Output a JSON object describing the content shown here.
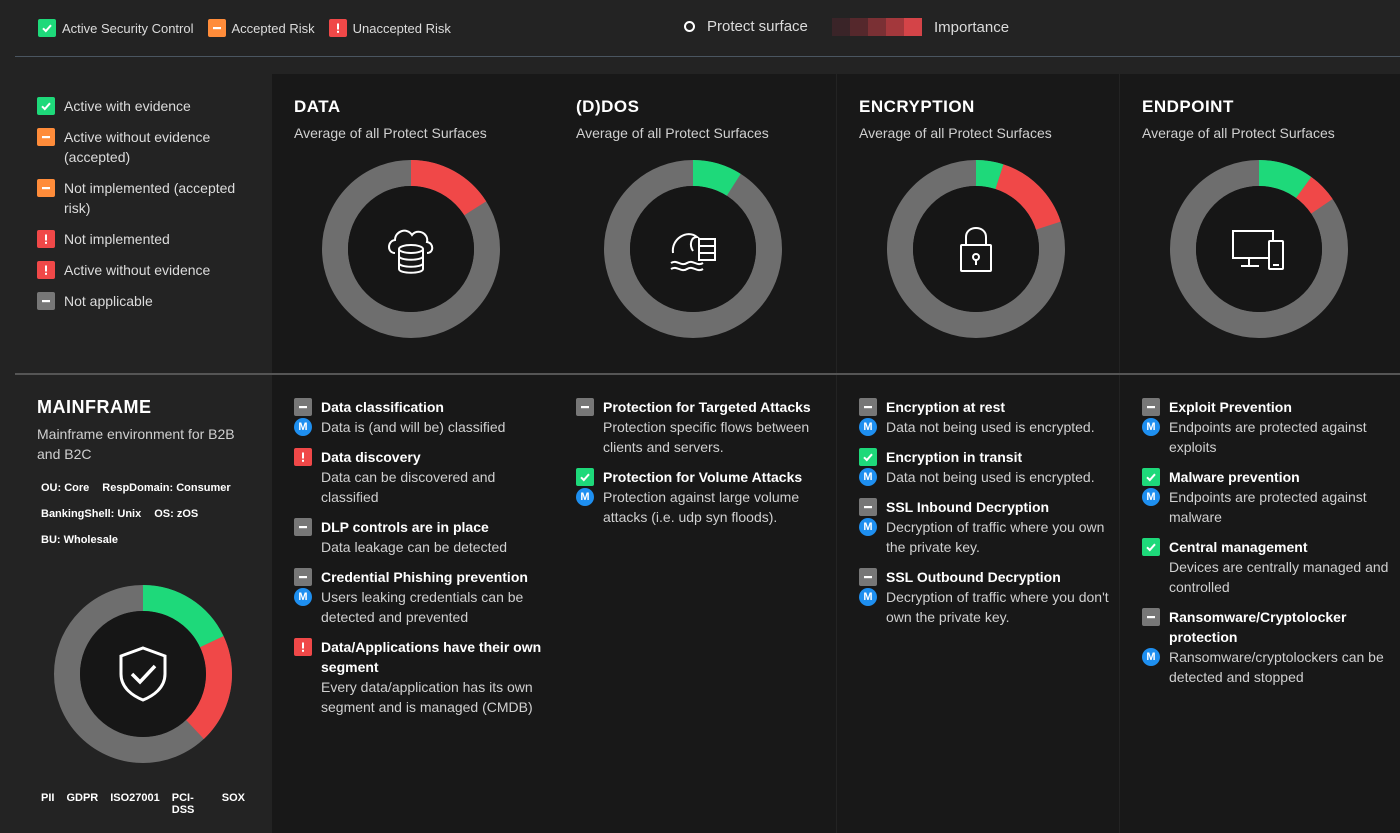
{
  "legend_top": {
    "items": [
      {
        "label": "Active Security Control",
        "status": "green"
      },
      {
        "label": "Accepted Risk",
        "status": "orange"
      },
      {
        "label": "Unaccepted Risk",
        "status": "red"
      }
    ],
    "protect_surface_label": "Protect surface",
    "importance_label": "Importance",
    "importance_colors": [
      "#3a2428",
      "#55282c",
      "#7a3034",
      "#a3383c",
      "#d44448"
    ]
  },
  "status_legend": [
    {
      "label": "Active with evidence",
      "status": "green"
    },
    {
      "label": "Active without evidence (accepted)",
      "status": "orange"
    },
    {
      "label": "Not implemented (accepted risk)",
      "status": "orange"
    },
    {
      "label": "Not implemented",
      "status": "red"
    },
    {
      "label": "Active without evidence",
      "status": "red"
    },
    {
      "label": "Not applicable",
      "status": "grey"
    }
  ],
  "colors": {
    "green": "#1ed97a",
    "orange": "#ff8c3a",
    "red": "#f04848",
    "grey": "#777777",
    "mbadge": "#1e8ff0"
  },
  "columns": [
    {
      "title": "DATA",
      "subtitle": "Average of all Protect Surfaces",
      "icon": "cloud-database-icon",
      "donut": {
        "green": 0,
        "red": 0.16
      },
      "controls": [
        {
          "status": "grey",
          "title": "Data classification",
          "badge": true,
          "desc": "Data is (and will be) classified"
        },
        {
          "status": "red",
          "title": "Data discovery",
          "badge": false,
          "desc": "Data can be discovered and classified"
        },
        {
          "status": "grey",
          "title": "DLP controls are in place",
          "badge": false,
          "desc": "Data leakage can be detected"
        },
        {
          "status": "grey",
          "title": "Credential Phishing prevention",
          "badge": true,
          "desc": "Users leaking credentials can be detected and prevented"
        },
        {
          "status": "red",
          "title": "Data/Applications have their own segment",
          "badge": false,
          "desc": "Every data/application has its own segment and is managed (CMDB)"
        }
      ]
    },
    {
      "title": "(D)DOS",
      "subtitle": "Average of all Protect Surfaces",
      "icon": "flood-server-icon",
      "donut": {
        "green": 0.09,
        "red": 0
      },
      "controls": [
        {
          "status": "grey",
          "title": "Protection for Targeted Attacks",
          "badge": false,
          "desc": "Protection specific flows between clients and servers."
        },
        {
          "status": "green",
          "title": "Protection for Volume Attacks",
          "badge": true,
          "desc": "Protection against large volume attacks (i.e. udp syn floods)."
        }
      ]
    },
    {
      "title": "ENCRYPTION",
      "subtitle": "Average of all Protect Surfaces",
      "icon": "padlock-icon",
      "donut": {
        "green": 0.05,
        "red": 0.15
      },
      "controls": [
        {
          "status": "grey",
          "title": "Encryption at rest",
          "badge": true,
          "desc": "Data not being used is encrypted."
        },
        {
          "status": "green",
          "title": "Encryption in transit",
          "badge": true,
          "desc": "Data not being used is encrypted."
        },
        {
          "status": "grey",
          "title": "SSL Inbound Decryption",
          "badge": true,
          "desc": "Decryption of traffic where you own the private key."
        },
        {
          "status": "grey",
          "title": "SSL Outbound Decryption",
          "badge": true,
          "desc": "Decryption of traffic where you don't own the private key."
        }
      ]
    },
    {
      "title": "ENDPOINT",
      "subtitle": "Average of all Protect Surfaces",
      "icon": "devices-icon",
      "donut": {
        "green": 0.1,
        "red": 0.055
      },
      "controls": [
        {
          "status": "grey",
          "title": "Exploit Prevention",
          "badge": true,
          "desc": "Endpoints are protected against exploits"
        },
        {
          "status": "green",
          "title": "Malware prevention",
          "badge": true,
          "desc": "Endpoints are protected against malware"
        },
        {
          "status": "green",
          "title": "Central management",
          "badge": false,
          "desc": "Devices are centrally managed and controlled"
        },
        {
          "status": "grey",
          "title": "Ransomware/Cryptolocker protection",
          "badge": true,
          "desc": "Ransomware/cryptolockers can be detected and stopped"
        }
      ]
    }
  ],
  "mainframe": {
    "title": "MAINFRAME",
    "description": "Mainframe environment for B2B and B2C",
    "tag_rows": [
      [
        "OU: Core",
        "RespDomain: Consumer"
      ],
      [
        "BankingShell: Unix",
        "OS: zOS"
      ],
      [
        "BU: Wholesale"
      ]
    ],
    "donut": {
      "green": 0.18,
      "red": 0.2
    },
    "icon": "shield-check-icon",
    "compliance": [
      "PII",
      "GDPR",
      "ISO27001",
      "PCI-DSS",
      "SOX"
    ]
  }
}
